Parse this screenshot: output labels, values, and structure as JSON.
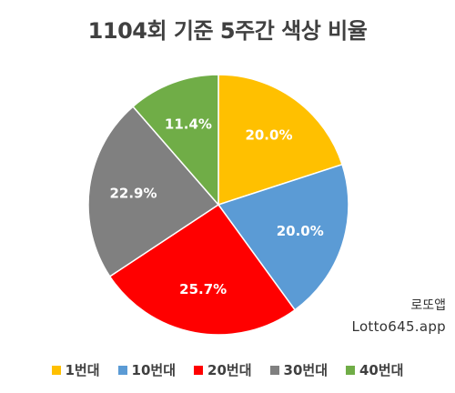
{
  "chart_data": {
    "type": "pie",
    "title": "1104회 기준 5주간 색상 비율",
    "categories": [
      "1번대",
      "10번대",
      "20번대",
      "30번대",
      "40번대"
    ],
    "values": [
      20.0,
      20.0,
      25.7,
      22.9,
      11.4
    ],
    "value_labels": [
      "20.0%",
      "20.0%",
      "25.7%",
      "22.9%",
      "11.4%"
    ],
    "colors": [
      "#FFC000",
      "#5B9BD5",
      "#FF0000",
      "#808080",
      "#70AD47"
    ],
    "start_angle_deg": 0,
    "direction": "clockwise",
    "legend_position": "bottom"
  },
  "watermark": {
    "brand": "로또앱",
    "url": "Lotto645.app"
  }
}
